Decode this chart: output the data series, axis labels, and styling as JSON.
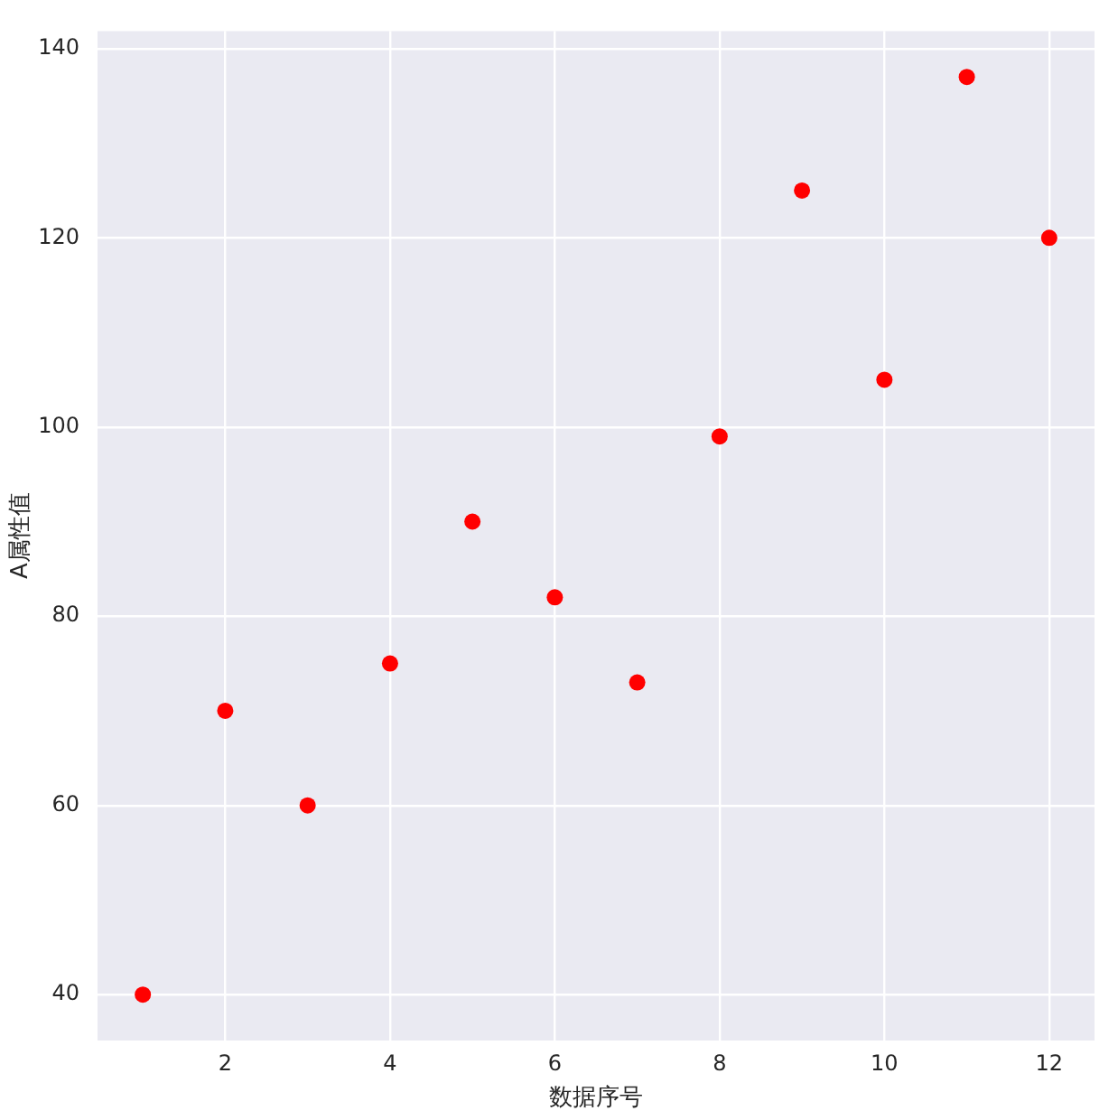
{
  "chart_data": {
    "type": "scatter",
    "xlabel": "数据序号",
    "ylabel": "A属性值",
    "x": [
      1,
      2,
      3,
      4,
      5,
      6,
      7,
      8,
      9,
      10,
      11,
      12
    ],
    "series": [
      {
        "color": "#ff0000",
        "values": [
          40,
          70,
          60,
          75,
          90,
          82,
          73,
          99,
          125,
          105,
          137,
          120
        ]
      }
    ],
    "xlim": [
      0.45,
      12.55
    ],
    "ylim": [
      35.15,
      141.85
    ],
    "xticks": [
      2,
      4,
      6,
      8,
      10,
      12
    ],
    "yticks": [
      40,
      60,
      80,
      100,
      120,
      140
    ],
    "grid": true,
    "marker": "circle"
  }
}
